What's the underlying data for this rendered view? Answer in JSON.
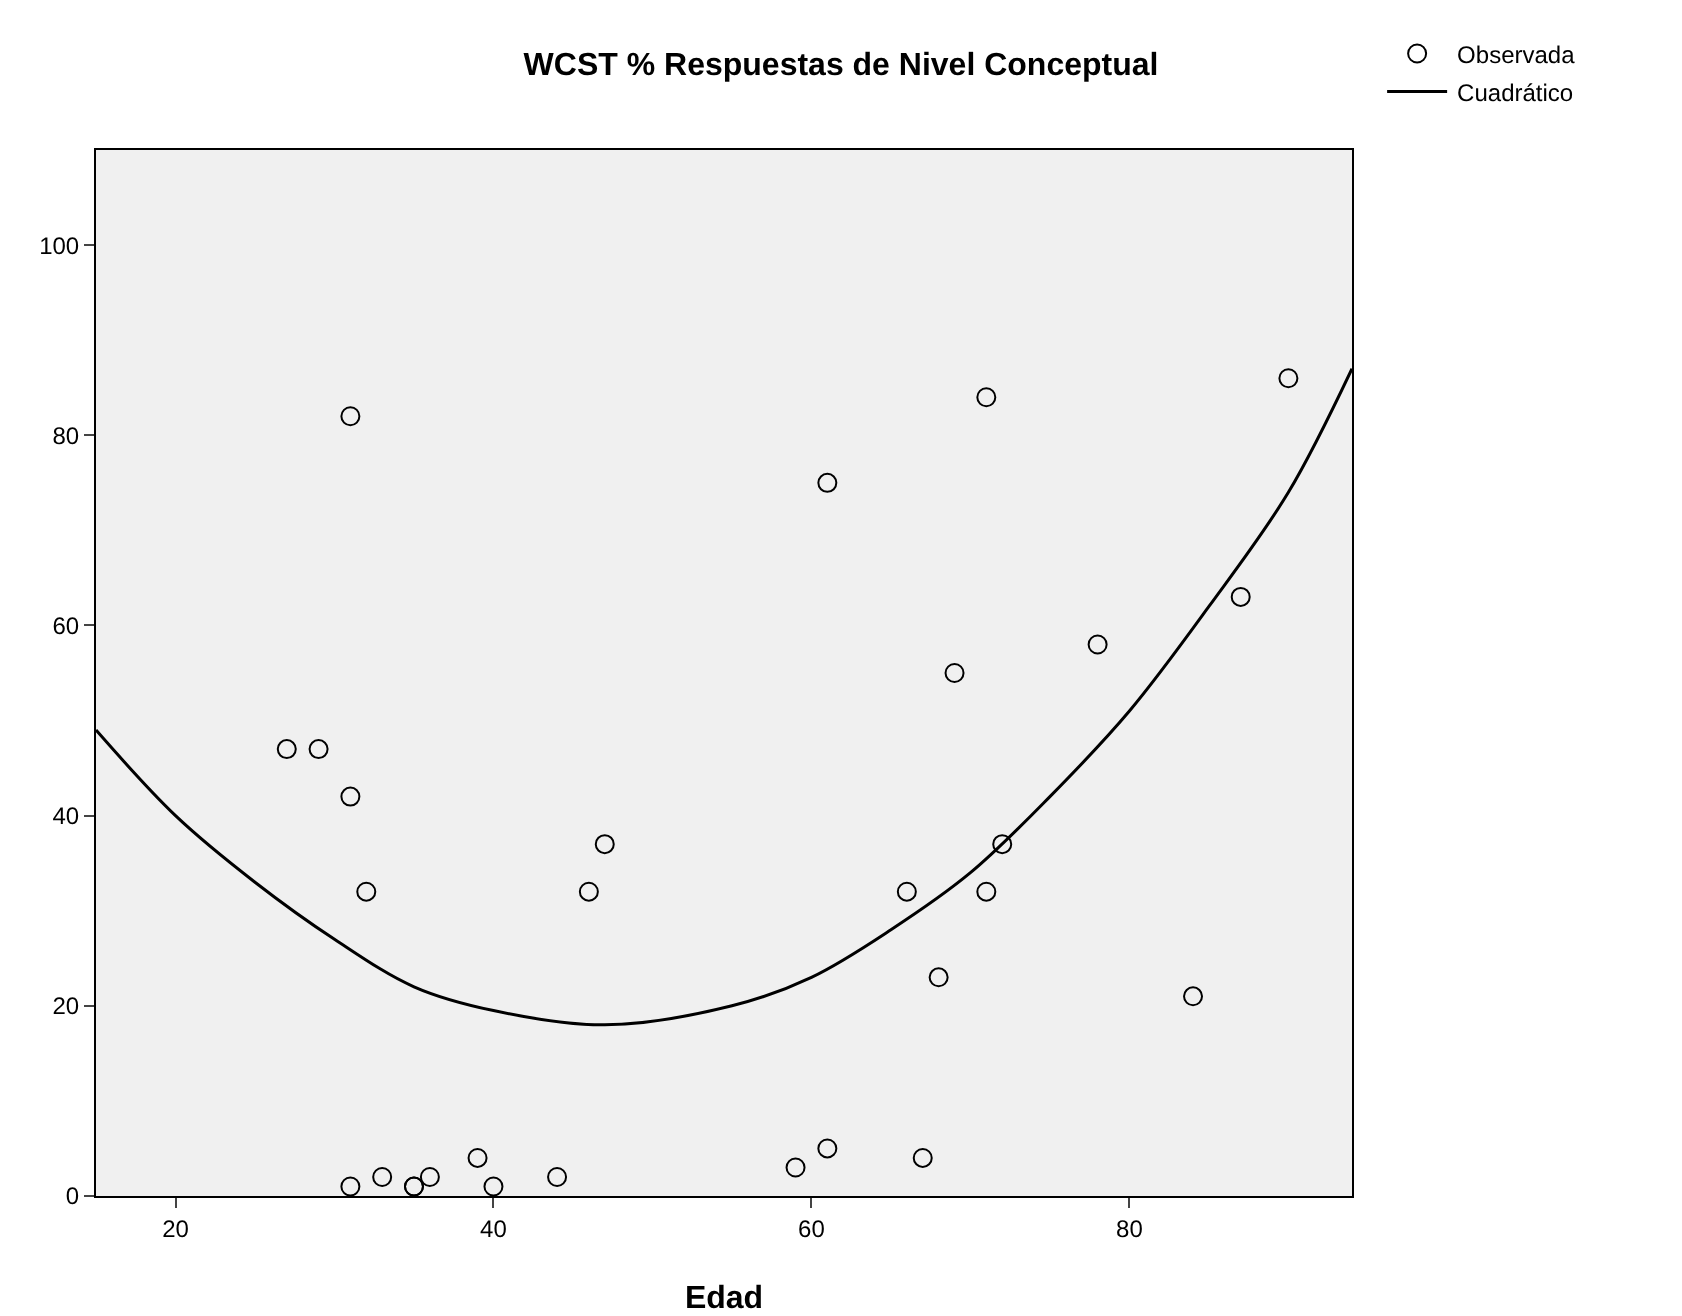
{
  "chart_data": {
    "type": "scatter",
    "title": "WCST % Respuestas de Nivel Conceptual",
    "xlabel": "Edad",
    "xlim": [
      15,
      94
    ],
    "ylim": [
      0,
      110
    ],
    "xticks": [
      20,
      40,
      60,
      80
    ],
    "yticks": [
      0,
      20,
      40,
      60,
      80,
      100
    ],
    "grid": false,
    "legend": "top right",
    "series": [
      {
        "name": "Observada",
        "color": "#000000",
        "marker": "circle",
        "x": [
          27,
          29,
          31,
          31,
          32,
          31,
          33,
          35,
          35,
          36,
          39,
          40,
          44,
          46,
          47,
          59,
          61,
          61,
          66,
          67,
          68,
          69,
          71,
          71,
          72,
          78,
          84,
          87,
          90
        ],
        "values": [
          47,
          47,
          82,
          42,
          32,
          1,
          2,
          1,
          1,
          2,
          4,
          1,
          2,
          32,
          37,
          3,
          5,
          75,
          32,
          4,
          23,
          55,
          84,
          32,
          37,
          58,
          21,
          63,
          86
        ]
      },
      {
        "name": "Cuadrático",
        "type": "line",
        "marker": "none",
        "color": "#000000",
        "line_style": "solid",
        "x": [
          15,
          20,
          25,
          30,
          35,
          40,
          47,
          55,
          60,
          65,
          70,
          75,
          80,
          85,
          90,
          94
        ],
        "values": [
          49,
          40,
          33,
          27,
          22,
          19.5,
          18,
          20,
          23,
          28,
          34,
          42,
          51,
          62,
          74,
          87
        ]
      }
    ]
  }
}
